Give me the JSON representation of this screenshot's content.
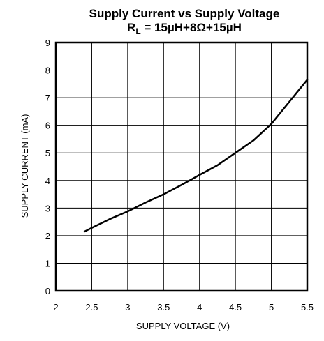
{
  "chart_data": {
    "type": "line",
    "title": "Supply Current vs Supply Voltage",
    "subtitle": {
      "prefix": "R",
      "subscript": "L",
      "rest": " = 15µH+8Ω+15µH"
    },
    "xlabel": "SUPPLY VOLTAGE  (V)",
    "ylabel": "SUPPLY CURRENT (mA)",
    "xlim": [
      2,
      5.5
    ],
    "ylim": [
      0,
      9
    ],
    "xticks": [
      "2",
      "2.5",
      "3",
      "3.5",
      "4",
      "4.5",
      "5",
      "5.5"
    ],
    "yticks": [
      "0",
      "1",
      "2",
      "3",
      "4",
      "5",
      "6",
      "7",
      "8",
      "9"
    ],
    "grid": true,
    "series": [
      {
        "x": [
          2.4,
          2.5,
          2.75,
          3.0,
          3.25,
          3.5,
          3.75,
          4.0,
          4.25,
          4.5,
          4.75,
          5.0,
          5.25,
          5.5
        ],
        "y": [
          2.15,
          2.28,
          2.6,
          2.88,
          3.2,
          3.5,
          3.84,
          4.2,
          4.55,
          5.0,
          5.45,
          6.05,
          6.85,
          7.65
        ]
      }
    ]
  },
  "colors": {
    "line": "#000000",
    "grid": "#000000",
    "background": "#ffffff"
  }
}
